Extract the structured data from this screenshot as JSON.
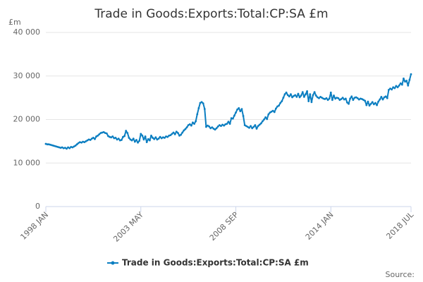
{
  "chart_data": {
    "type": "line",
    "title": "Trade in Goods:Exports:Total:CP:SA £m",
    "y_label": "£m",
    "source": "Source:",
    "categories": [
      "1998 JAN",
      null,
      null,
      null,
      null,
      null,
      null,
      null,
      null,
      null,
      null,
      null,
      null,
      null,
      null,
      null,
      null,
      null,
      null,
      null,
      null,
      null,
      null,
      null,
      null,
      null,
      null,
      null,
      null,
      null,
      null,
      null,
      null,
      null,
      null,
      null,
      null,
      null,
      null,
      null,
      null,
      null,
      null,
      null,
      null,
      null,
      null,
      null,
      null,
      null,
      null,
      null,
      null,
      null,
      null,
      null,
      null,
      null,
      null,
      null,
      null,
      null,
      null,
      null,
      "2003 MAY",
      null,
      null,
      null,
      null,
      null,
      null,
      null,
      null,
      null,
      null,
      null,
      null,
      null,
      null,
      null,
      null,
      null,
      null,
      null,
      null,
      null,
      null,
      null,
      null,
      null,
      null,
      null,
      null,
      null,
      null,
      null,
      null,
      null,
      null,
      null,
      null,
      null,
      null,
      null,
      null,
      null,
      null,
      null,
      null,
      null,
      null,
      null,
      null,
      null,
      null,
      null,
      null,
      null,
      null,
      null,
      null,
      null,
      null,
      null,
      null,
      null,
      null,
      null,
      "2008 SEP",
      null,
      null,
      null,
      null,
      null,
      null,
      null,
      null,
      null,
      null,
      null,
      null,
      null,
      null,
      null,
      null,
      null,
      null,
      null,
      null,
      null,
      null,
      null,
      null,
      null,
      null,
      null,
      null,
      null,
      null,
      null,
      null,
      null,
      null,
      null,
      null,
      null,
      null,
      null,
      null,
      null,
      null,
      null,
      null,
      null,
      null,
      null,
      null,
      null,
      null,
      null,
      null,
      null,
      null,
      null,
      null,
      null,
      null,
      null,
      null,
      null,
      null,
      null,
      "2014 JAN",
      null,
      null,
      null,
      null,
      null,
      null,
      null,
      null,
      null,
      null,
      null,
      null,
      null,
      null,
      null,
      null,
      null,
      null,
      null,
      null,
      null,
      null,
      null,
      null,
      null,
      null,
      null,
      null,
      null,
      null,
      null,
      null,
      null,
      null,
      null,
      null,
      null,
      null,
      null,
      null,
      null,
      null,
      null,
      null,
      null,
      null,
      null,
      null,
      null,
      null,
      null,
      null,
      null,
      "2018 JUL"
    ],
    "series": [
      {
        "name": "Trade in Goods:Exports:Total:CP:SA £m",
        "color": "#0b7ec1",
        "values": [
          14400,
          14300,
          14300,
          14200,
          14100,
          14000,
          13900,
          13800,
          13700,
          13600,
          13500,
          13600,
          13400,
          13500,
          13300,
          13600,
          13400,
          13700,
          13600,
          13800,
          14000,
          14300,
          14600,
          14800,
          14700,
          14900,
          14800,
          15000,
          15200,
          15400,
          15300,
          15600,
          15800,
          15500,
          16100,
          16300,
          16600,
          16900,
          17000,
          17100,
          16900,
          16800,
          16200,
          16000,
          15900,
          16100,
          15700,
          15800,
          15400,
          15600,
          15200,
          15300,
          16000,
          16200,
          17400,
          16900,
          15800,
          15400,
          15200,
          15600,
          14900,
          15300,
          14700,
          15100,
          16700,
          16300,
          15400,
          16100,
          14800,
          15500,
          15200,
          16300,
          15800,
          15500,
          15900,
          15400,
          15600,
          16000,
          15700,
          15900,
          15800,
          16100,
          16000,
          16300,
          16400,
          16700,
          17000,
          16600,
          17200,
          16900,
          16300,
          16500,
          17000,
          17500,
          17800,
          18200,
          18700,
          18900,
          18600,
          19300,
          19000,
          19600,
          21200,
          22600,
          23800,
          24000,
          23700,
          22400,
          18300,
          18600,
          18400,
          18000,
          18200,
          17900,
          17700,
          18000,
          18400,
          18700,
          18500,
          18800,
          18600,
          18900,
          19000,
          19500,
          19000,
          20300,
          20200,
          20900,
          21600,
          22300,
          22600,
          21900,
          22400,
          20800,
          18700,
          18500,
          18300,
          18100,
          18500,
          18000,
          18300,
          18700,
          17900,
          18500,
          18800,
          19100,
          19600,
          20000,
          20500,
          20100,
          21200,
          21600,
          21800,
          22000,
          21700,
          22500,
          23000,
          23200,
          23800,
          24200,
          25000,
          25800,
          26200,
          25600,
          25300,
          25800,
          25100,
          25400,
          25600,
          25200,
          25900,
          25100,
          25500,
          26300,
          25200,
          25800,
          26500,
          24200,
          25800,
          24000,
          25600,
          26300,
          25500,
          25100,
          24900,
          25200,
          25000,
          24800,
          24700,
          24900,
          24500,
          24800,
          26200,
          24500,
          25500,
          24800,
          25000,
          24900,
          24500,
          24700,
          25000,
          24600,
          24800,
          23900,
          23600,
          24800,
          25300,
          24500,
          25000,
          25100,
          24900,
          24600,
          24800,
          24700,
          24500,
          24300,
          23300,
          24100,
          23200,
          23600,
          24000,
          23500,
          23800,
          23300,
          24100,
          24600,
          25200,
          24600,
          25100,
          25300,
          24900,
          26800,
          27100,
          26900,
          27400,
          27200,
          27700,
          27400,
          27800,
          28300,
          28000,
          29400,
          28700,
          28900,
          27800,
          29100,
          30400
        ]
      }
    ],
    "ylim": [
      0,
      40000
    ],
    "yticks": [
      0,
      {
        "value": 10000,
        "label": "10 000"
      },
      {
        "value": 20000,
        "label": "20 000"
      },
      {
        "value": 30000,
        "label": "30 000"
      },
      {
        "value": 40000,
        "label": "40 000"
      }
    ],
    "grid": true
  }
}
